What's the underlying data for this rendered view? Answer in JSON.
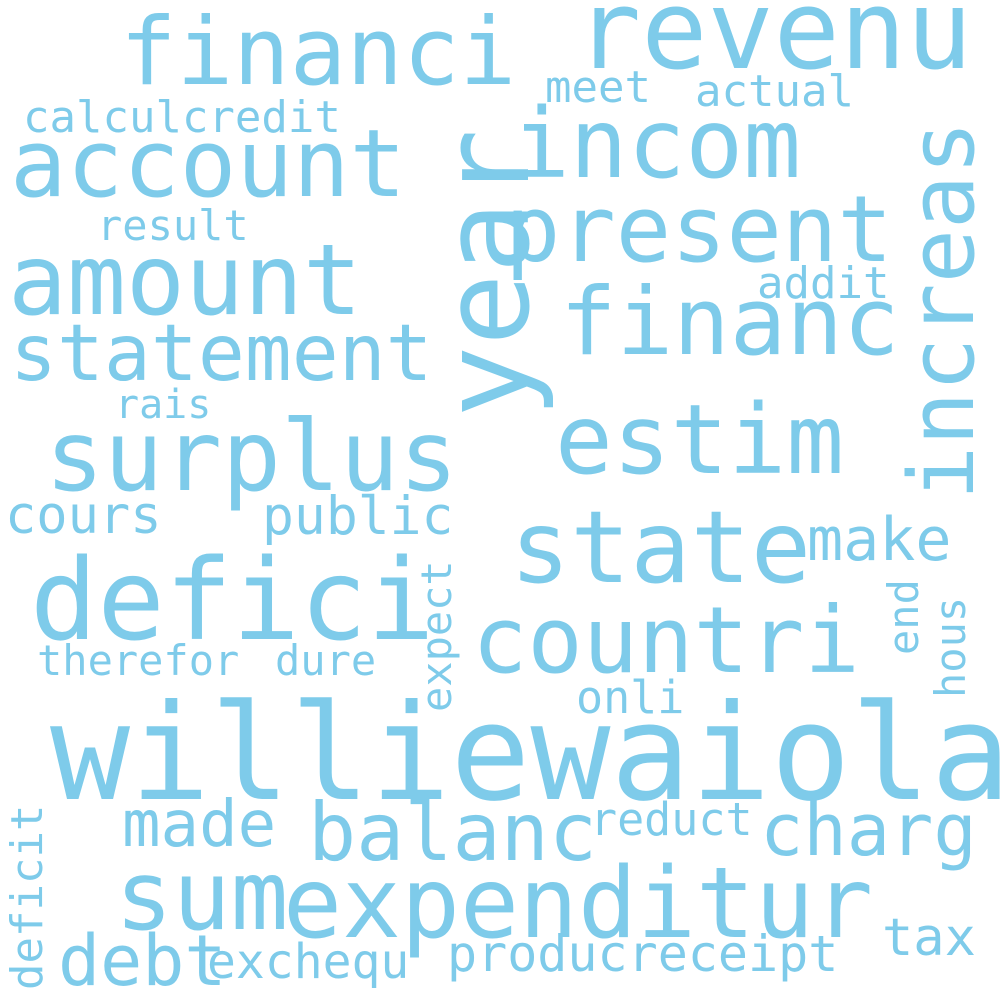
{
  "word_color": "#7ecbea",
  "background": "#ffffff",
  "words": {
    "williewaiola": "williewaiola",
    "revenu": "revenu",
    "financi": "financi",
    "year": "year",
    "account": "account",
    "incom": "incom",
    "present": "present",
    "amount": "amount",
    "increas": "increas",
    "financ": "financ",
    "statement": "statement",
    "surplus": "surplus",
    "estim": "estim",
    "state": "state",
    "defici": "defici",
    "countri": "countri",
    "expenditur": "expenditur",
    "sum": "sum",
    "balanc": "balanc",
    "charg": "charg",
    "made": "made",
    "debt": "debt",
    "producreceipt": "producreceipt",
    "exchequ": "exchequ",
    "deficit": "deficit",
    "tax": "tax",
    "reduct": "reduct",
    "onli": "onli",
    "expect": "expect",
    "therefor": "therefor",
    "dure": "dure",
    "public": "public",
    "cours": "cours",
    "make": "make",
    "end": "end",
    "hous": "hous",
    "rais": "rais",
    "result": "result",
    "calculcredit": "calculcredit",
    "meet": "meet",
    "actual": "actual",
    "addit": "addit"
  }
}
